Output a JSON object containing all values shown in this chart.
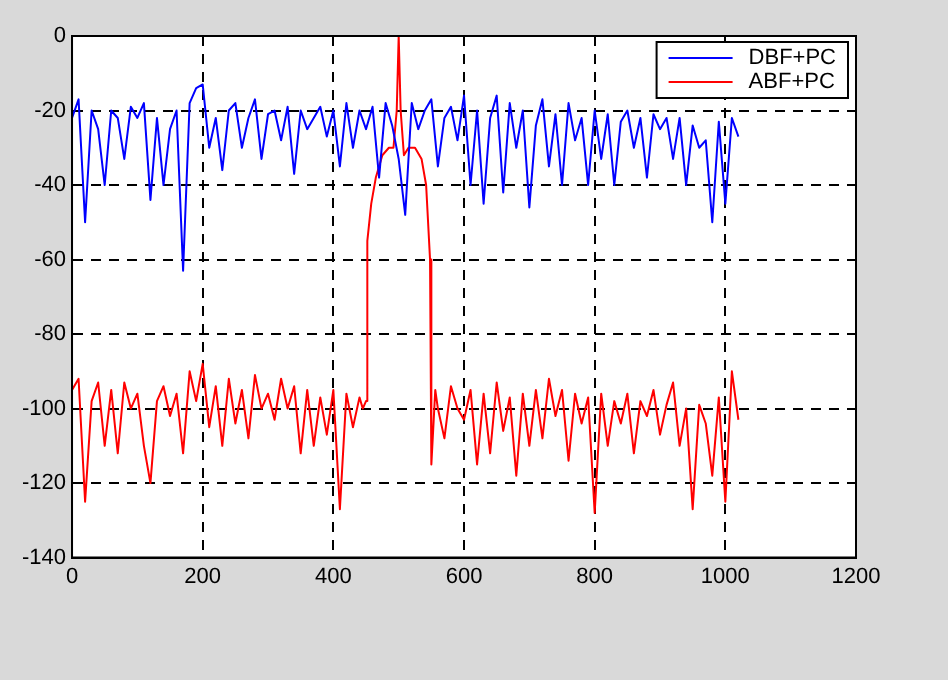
{
  "chart_data": {
    "type": "line",
    "xlim": [
      0,
      1200
    ],
    "xticks": [
      0,
      200,
      400,
      600,
      800,
      1000,
      1200
    ],
    "ylim": [
      -140,
      0
    ],
    "yticks": [
      -140,
      -120,
      -100,
      -80,
      -60,
      -40,
      -20,
      0
    ],
    "grid": true,
    "legend": "top right",
    "marker": "none",
    "line_style": "solid",
    "series": [
      {
        "name": "DBF+PC",
        "color": "#0000ff",
        "x": [
          0,
          10,
          20,
          30,
          40,
          50,
          60,
          70,
          80,
          90,
          100,
          110,
          120,
          130,
          140,
          150,
          160,
          170,
          180,
          190,
          200,
          210,
          220,
          230,
          240,
          250,
          260,
          270,
          280,
          290,
          300,
          310,
          320,
          330,
          340,
          350,
          360,
          370,
          380,
          390,
          400,
          410,
          420,
          430,
          440,
          450,
          460,
          470,
          480,
          490,
          500,
          510,
          520,
          530,
          540,
          550,
          560,
          570,
          580,
          590,
          600,
          610,
          620,
          630,
          640,
          650,
          660,
          670,
          680,
          690,
          700,
          710,
          720,
          730,
          740,
          750,
          760,
          770,
          780,
          790,
          800,
          810,
          820,
          830,
          840,
          850,
          860,
          870,
          880,
          890,
          900,
          910,
          920,
          930,
          940,
          950,
          960,
          970,
          980,
          990,
          1000,
          1010,
          1020
        ],
        "values": [
          -22,
          -17,
          -50,
          -20,
          -25,
          -40,
          -20,
          -22,
          -33,
          -19,
          -22,
          -18,
          -44,
          -22,
          -40,
          -25,
          -20,
          -63,
          -18,
          -14,
          -13,
          -30,
          -22,
          -36,
          -20,
          -18,
          -30,
          -22,
          -17,
          -33,
          -21,
          -20,
          -28,
          -19,
          -37,
          -20,
          -25,
          -22,
          -19,
          -27,
          -20,
          -35,
          -18,
          -30,
          -20,
          -25,
          -19,
          -38,
          -18,
          -24,
          -33,
          -48,
          -18,
          -25,
          -20,
          -17,
          -35,
          -22,
          -19,
          -28,
          -16,
          -40,
          -20,
          -45,
          -22,
          -16,
          -42,
          -18,
          -30,
          -20,
          -46,
          -24,
          -17,
          -35,
          -21,
          -40,
          -18,
          -28,
          -22,
          -40,
          -20,
          -33,
          -21,
          -40,
          -23,
          -20,
          -30,
          -22,
          -38,
          -21,
          -25,
          -22,
          -33,
          -22,
          -40,
          -24,
          -30,
          -28,
          -50,
          -23,
          -45,
          -22,
          -27
        ]
      },
      {
        "name": "ABF+PC",
        "color": "#ff0000",
        "x": [
          0,
          10,
          20,
          30,
          40,
          50,
          60,
          70,
          80,
          90,
          100,
          110,
          120,
          130,
          140,
          150,
          160,
          170,
          180,
          190,
          200,
          210,
          220,
          230,
          240,
          250,
          260,
          270,
          280,
          290,
          300,
          310,
          320,
          330,
          340,
          350,
          360,
          370,
          380,
          390,
          400,
          410,
          420,
          430,
          440,
          445,
          450,
          452,
          458,
          465,
          475,
          485,
          492,
          497,
          500,
          503,
          508,
          515,
          525,
          535,
          542,
          548,
          550,
          556,
          560,
          570,
          580,
          590,
          600,
          610,
          620,
          630,
          640,
          650,
          660,
          670,
          680,
          690,
          700,
          710,
          720,
          730,
          740,
          750,
          760,
          770,
          780,
          790,
          800,
          810,
          820,
          830,
          840,
          850,
          860,
          870,
          880,
          890,
          900,
          910,
          920,
          930,
          940,
          950,
          960,
          970,
          980,
          990,
          1000,
          1010,
          1020
        ],
        "values": [
          -95,
          -92,
          -125,
          -98,
          -93,
          -110,
          -95,
          -112,
          -93,
          -100,
          -96,
          -110,
          -120,
          -98,
          -94,
          -102,
          -96,
          -112,
          -90,
          -98,
          -88,
          -105,
          -94,
          -110,
          -92,
          -104,
          -95,
          -108,
          -91,
          -100,
          -96,
          -103,
          -92,
          -100,
          -94,
          -112,
          -95,
          -110,
          -97,
          -107,
          -95,
          -127,
          -96,
          -105,
          -97,
          -100,
          -98,
          -55,
          -45,
          -38,
          -32,
          -30,
          -30,
          -20,
          0,
          -20,
          -32,
          -30,
          -30,
          -33,
          -40,
          -60,
          -115,
          -95,
          -100,
          -108,
          -94,
          -100,
          -103,
          -95,
          -115,
          -96,
          -112,
          -93,
          -106,
          -97,
          -118,
          -96,
          -110,
          -95,
          -108,
          -92,
          -102,
          -95,
          -114,
          -96,
          -104,
          -97,
          -128,
          -96,
          -110,
          -98,
          -104,
          -96,
          -112,
          -98,
          -102,
          -95,
          -107,
          -99,
          -93,
          -110,
          -100,
          -127,
          -99,
          -104,
          -118,
          -97,
          -125,
          -90,
          -103
        ]
      }
    ]
  }
}
